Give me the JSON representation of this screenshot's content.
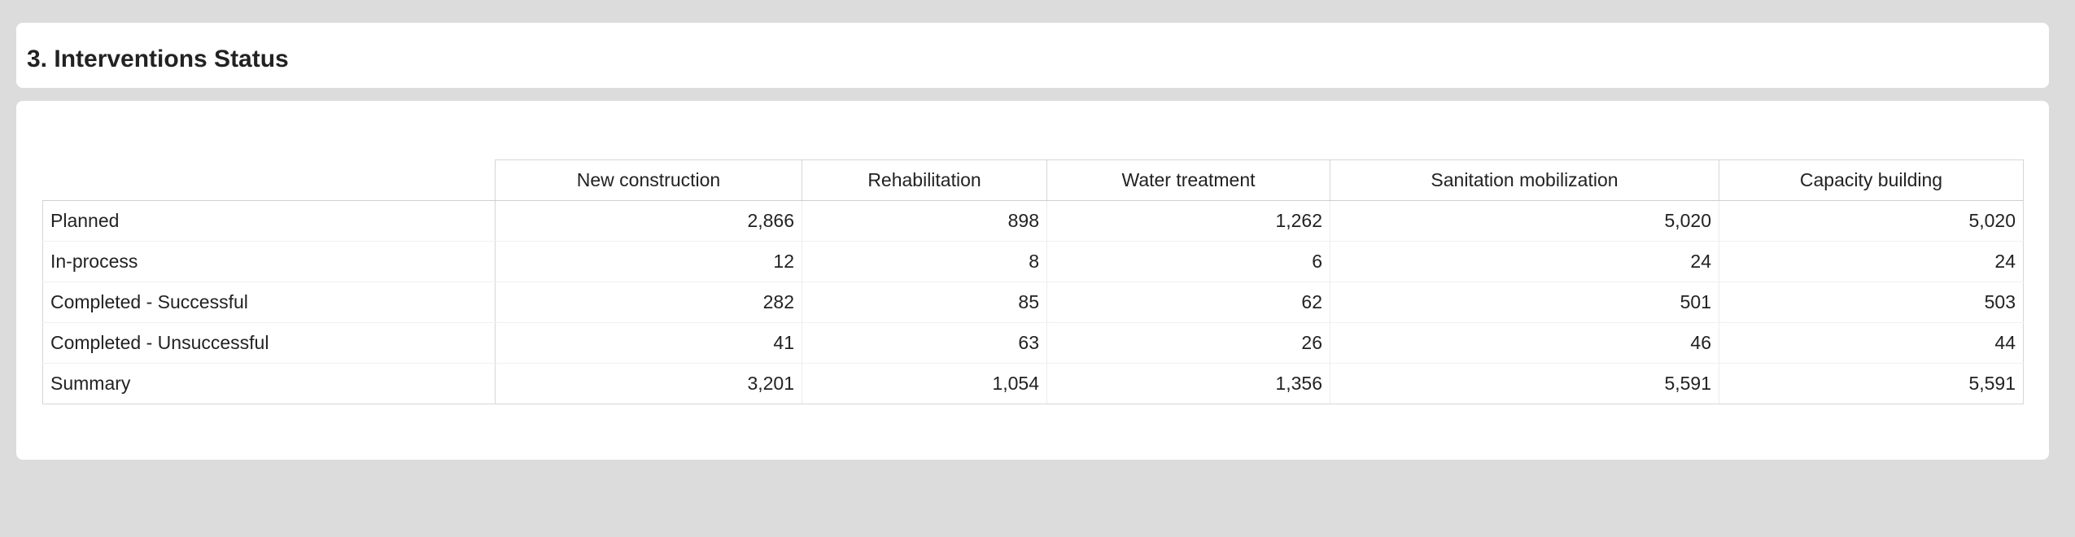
{
  "header": {
    "title": "3. Interventions Status"
  },
  "table": {
    "columns": [
      "New construction",
      "Rehabilitation",
      "Water treatment",
      "Sanitation mobilization",
      "Capacity building"
    ],
    "rows": [
      {
        "label": "Planned",
        "values": [
          "2,866",
          "898",
          "1,262",
          "5,020",
          "5,020"
        ]
      },
      {
        "label": "In-process",
        "values": [
          "12",
          "8",
          "6",
          "24",
          "24"
        ]
      },
      {
        "label": "Completed - Successful",
        "values": [
          "282",
          "85",
          "62",
          "501",
          "503"
        ]
      },
      {
        "label": "Completed - Unsuccessful",
        "values": [
          "41",
          "63",
          "26",
          "46",
          "44"
        ]
      }
    ],
    "summary": {
      "label": "Summary",
      "values": [
        "3,201",
        "1,054",
        "1,356",
        "5,591",
        "5,591"
      ]
    }
  }
}
